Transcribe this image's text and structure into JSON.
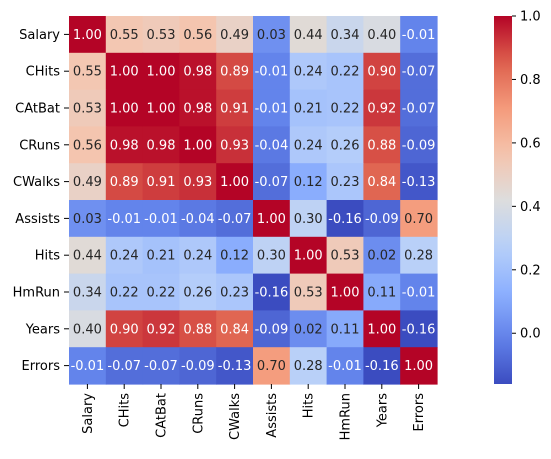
{
  "chart_data": {
    "type": "heatmap",
    "title": "",
    "xlabel": "",
    "ylabel": "",
    "rows": [
      "Salary",
      "CHits",
      "CAtBat",
      "CRuns",
      "CWalks",
      "Assists",
      "Hits",
      "HmRun",
      "Years",
      "Errors"
    ],
    "columns": [
      "Salary",
      "CHits",
      "CAtBat",
      "CRuns",
      "CWalks",
      "Assists",
      "Hits",
      "HmRun",
      "Years",
      "Errors"
    ],
    "values": [
      [
        1.0,
        0.55,
        0.53,
        0.56,
        0.49,
        0.03,
        0.44,
        0.34,
        0.4,
        -0.01
      ],
      [
        0.55,
        1.0,
        1.0,
        0.98,
        0.89,
        -0.01,
        0.24,
        0.22,
        0.9,
        -0.07
      ],
      [
        0.53,
        1.0,
        1.0,
        0.98,
        0.91,
        -0.01,
        0.21,
        0.22,
        0.92,
        -0.07
      ],
      [
        0.56,
        0.98,
        0.98,
        1.0,
        0.93,
        -0.04,
        0.24,
        0.26,
        0.88,
        -0.09
      ],
      [
        0.49,
        0.89,
        0.91,
        0.93,
        1.0,
        -0.07,
        0.12,
        0.23,
        0.84,
        -0.13
      ],
      [
        0.03,
        -0.01,
        -0.01,
        -0.04,
        -0.07,
        1.0,
        0.3,
        -0.16,
        -0.09,
        0.7
      ],
      [
        0.44,
        0.24,
        0.21,
        0.24,
        0.12,
        0.3,
        1.0,
        0.53,
        0.02,
        0.28
      ],
      [
        0.34,
        0.22,
        0.22,
        0.26,
        0.23,
        -0.16,
        0.53,
        1.0,
        0.11,
        -0.01
      ],
      [
        0.4,
        0.9,
        0.92,
        0.88,
        0.84,
        -0.09,
        0.02,
        0.11,
        1.0,
        -0.16
      ],
      [
        -0.01,
        -0.07,
        -0.07,
        -0.09,
        -0.13,
        0.7,
        0.28,
        -0.01,
        -0.16,
        1.0
      ]
    ],
    "annotation_format": "0.00",
    "colormap": "coolwarm",
    "vmin": -0.16,
    "vmax": 1.0,
    "colorbar": {
      "position": "right",
      "ticks": [
        -0.0,
        0.2,
        0.4,
        0.6,
        0.8,
        1.0
      ],
      "tick_labels": [
        "0.0",
        "0.2",
        "0.4",
        "0.6",
        "0.8",
        "1.0"
      ]
    },
    "grid": false
  }
}
